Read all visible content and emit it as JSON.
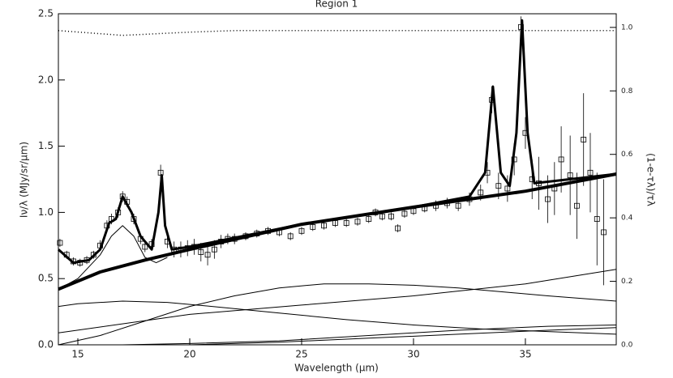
{
  "chart_data": {
    "type": "spectrum",
    "title": "Region 1",
    "xlabel": "Wavelength (μm)",
    "ylabel": "Iν/λ (MJy/sr/μm)",
    "y2label": "(1-e-τλ)/τλ",
    "color": "#000000",
    "xlim": [
      14.13,
      39.06
    ],
    "xticks": [
      15,
      20,
      25,
      30,
      35
    ],
    "ylim": [
      0,
      2.5
    ],
    "yticks": [
      {
        "value": 0,
        "label": "0.0"
      },
      0.5,
      {
        "value": 1,
        "label": "1.0"
      },
      1.5,
      {
        "value": 2,
        "label": "2.0"
      },
      2.5
    ],
    "y2lim": [
      0,
      1.043
    ],
    "y2ticks": [
      {
        "value": 0,
        "label": "0.0"
      },
      0.2,
      0.4,
      0.6,
      0.8,
      {
        "value": 1,
        "label": "1.0"
      }
    ],
    "points": {
      "x": [
        14.2,
        14.5,
        14.8,
        15.1,
        15.4,
        15.7,
        16.0,
        16.3,
        16.5,
        16.8,
        17.0,
        17.2,
        17.5,
        17.8,
        18.0,
        18.3,
        18.7,
        19.0,
        19.3,
        19.6,
        19.9,
        20.2,
        20.5,
        20.8,
        21.1,
        21.4,
        21.7,
        22.0,
        22.5,
        23.0,
        23.5,
        24.0,
        24.5,
        25.0,
        25.5,
        26.0,
        26.5,
        27.0,
        27.5,
        28.0,
        28.3,
        28.6,
        29.0,
        29.3,
        29.6,
        30.0,
        30.5,
        31.0,
        31.5,
        32.0,
        32.5,
        33.0,
        33.3,
        33.5,
        33.8,
        34.2,
        34.5,
        34.8,
        35.0,
        35.3,
        35.6,
        36.0,
        36.3,
        36.6,
        37.0,
        37.3,
        37.6,
        37.9,
        38.2,
        38.5
      ],
      "values": [
        0.77,
        0.68,
        0.63,
        0.62,
        0.64,
        0.68,
        0.75,
        0.9,
        0.95,
        1.0,
        1.12,
        1.08,
        0.95,
        0.8,
        0.74,
        0.76,
        1.3,
        0.78,
        0.72,
        0.72,
        0.73,
        0.74,
        0.7,
        0.68,
        0.72,
        0.78,
        0.8,
        0.8,
        0.82,
        0.84,
        0.86,
        0.85,
        0.82,
        0.86,
        0.89,
        0.9,
        0.92,
        0.92,
        0.93,
        0.95,
        1.0,
        0.97,
        0.97,
        0.88,
        0.99,
        1.01,
        1.03,
        1.05,
        1.07,
        1.05,
        1.1,
        1.15,
        1.3,
        1.85,
        1.2,
        1.18,
        1.4,
        2.4,
        1.6,
        1.25,
        1.22,
        1.1,
        1.18,
        1.4,
        1.28,
        1.05,
        1.55,
        1.3,
        0.95,
        0.85
      ],
      "errors": [
        0.03,
        0.03,
        0.03,
        0.03,
        0.03,
        0.03,
        0.04,
        0.04,
        0.04,
        0.04,
        0.04,
        0.04,
        0.04,
        0.04,
        0.04,
        0.04,
        0.06,
        0.05,
        0.06,
        0.06,
        0.06,
        0.06,
        0.07,
        0.08,
        0.07,
        0.05,
        0.04,
        0.04,
        0.03,
        0.03,
        0.03,
        0.03,
        0.03,
        0.03,
        0.03,
        0.03,
        0.03,
        0.03,
        0.03,
        0.03,
        0.03,
        0.03,
        0.03,
        0.03,
        0.03,
        0.03,
        0.03,
        0.04,
        0.04,
        0.04,
        0.05,
        0.06,
        0.08,
        0.1,
        0.1,
        0.1,
        0.12,
        0.08,
        0.12,
        0.15,
        0.2,
        0.18,
        0.2,
        0.25,
        0.3,
        0.25,
        0.35,
        0.3,
        0.35,
        0.4
      ]
    },
    "lines": [
      {
        "x": [
          14.13,
          16,
          18,
          20,
          25,
          30,
          35,
          39.06
        ],
        "values": [
          0.42,
          0.55,
          0.64,
          0.72,
          0.91,
          1.04,
          1.16,
          1.29
        ],
        "width": 4
      },
      {
        "x": [
          14.13,
          14.8,
          15.5,
          16,
          16.4,
          16.7,
          17.0,
          17.4,
          17.8,
          18.3,
          18.6,
          18.75,
          18.9,
          19.2,
          20,
          25,
          30,
          32.5,
          33.2,
          33.55,
          33.9,
          34.3,
          34.6,
          34.85,
          35.1,
          35.4,
          39.06
        ],
        "values": [
          0.72,
          0.62,
          0.64,
          0.72,
          0.92,
          0.95,
          1.12,
          1.0,
          0.82,
          0.72,
          1.0,
          1.28,
          0.9,
          0.72,
          0.74,
          0.91,
          1.04,
          1.12,
          1.3,
          1.95,
          1.3,
          1.2,
          1.6,
          2.45,
          1.6,
          1.22,
          1.29
        ],
        "width": 3
      },
      {
        "x": [
          14.13,
          15,
          16,
          16.5,
          17,
          17.5,
          18,
          18.5,
          19
        ],
        "values": [
          0.42,
          0.5,
          0.68,
          0.82,
          0.9,
          0.82,
          0.66,
          0.62,
          0.66
        ],
        "width": 1
      },
      {
        "x": [
          14.13,
          15,
          17,
          19,
          21,
          24,
          27,
          30,
          33,
          36,
          39.06
        ],
        "values": [
          0.29,
          0.31,
          0.33,
          0.32,
          0.29,
          0.24,
          0.19,
          0.15,
          0.12,
          0.1,
          0.08
        ],
        "width": 1
      },
      {
        "x": [
          14.13,
          16,
          18,
          20,
          22,
          24,
          26,
          28,
          30,
          32,
          34,
          36,
          39.06
        ],
        "values": [
          0.0,
          0.07,
          0.18,
          0.29,
          0.37,
          0.43,
          0.46,
          0.46,
          0.45,
          0.43,
          0.4,
          0.37,
          0.33
        ],
        "width": 1
      },
      {
        "x": [
          14.13,
          20,
          25,
          30,
          35,
          39.06
        ],
        "values": [
          0.09,
          0.23,
          0.3,
          0.37,
          0.46,
          0.57
        ],
        "width": 1
      },
      {
        "x": [
          17,
          20,
          24,
          28,
          32,
          36,
          39.06
        ],
        "values": [
          0.0,
          0.01,
          0.03,
          0.07,
          0.11,
          0.14,
          0.15
        ],
        "width": 1
      },
      {
        "x": [
          20,
          24,
          28,
          32,
          36,
          39.06
        ],
        "values": [
          0.0,
          0.02,
          0.05,
          0.08,
          0.11,
          0.13
        ],
        "width": 1
      },
      {
        "x": [
          14.13,
          17,
          20,
          22,
          30,
          39.06
        ],
        "values": [
          0.99,
          0.975,
          0.985,
          0.99,
          0.99,
          0.99
        ],
        "width": 1.5,
        "dash": "1 3",
        "axis": "y2"
      }
    ]
  }
}
